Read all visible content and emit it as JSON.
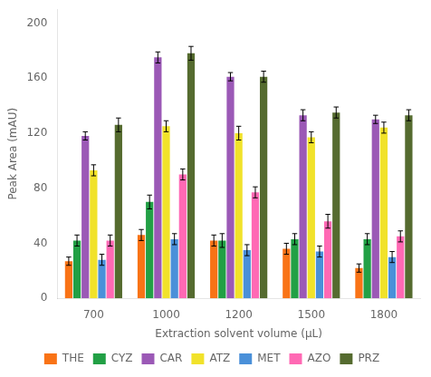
{
  "chart_data": {
    "type": "bar",
    "categories": [
      "700",
      "1000",
      "1200",
      "1500",
      "1800"
    ],
    "series": [
      {
        "name": "THE",
        "color": "#F97316",
        "values": [
          27,
          46,
          42,
          36,
          22
        ],
        "errors": [
          3,
          4,
          4,
          4,
          3
        ]
      },
      {
        "name": "CYZ",
        "color": "#22A045",
        "values": [
          42,
          70,
          42,
          43,
          43
        ],
        "errors": [
          4,
          5,
          5,
          4,
          4
        ]
      },
      {
        "name": "CAR",
        "color": "#9B59B6",
        "values": [
          118,
          175,
          161,
          133,
          130
        ],
        "errors": [
          3,
          4,
          3,
          4,
          3
        ]
      },
      {
        "name": "ATZ",
        "color": "#F1E22A",
        "values": [
          93,
          125,
          120,
          117,
          124
        ],
        "errors": [
          4,
          4,
          5,
          4,
          4
        ]
      },
      {
        "name": "MET",
        "color": "#4A90D9",
        "values": [
          28,
          43,
          35,
          34,
          30
        ],
        "errors": [
          4,
          4,
          4,
          4,
          4
        ]
      },
      {
        "name": "AZO",
        "color": "#FF69B4",
        "values": [
          42,
          90,
          77,
          56,
          45
        ],
        "errors": [
          4,
          4,
          4,
          5,
          4
        ]
      },
      {
        "name": "PRZ",
        "color": "#556B2F",
        "values": [
          126,
          178,
          161,
          135,
          133
        ],
        "errors": [
          5,
          5,
          4,
          4,
          4
        ]
      }
    ],
    "xlabel": "Extraction solvent volume (μL)",
    "ylabel": "Peak Area (mAU)",
    "ylim": [
      0,
      210
    ],
    "yticks": [
      0,
      40,
      80,
      120,
      160,
      200
    ],
    "grid": false,
    "legend": "bottom"
  }
}
